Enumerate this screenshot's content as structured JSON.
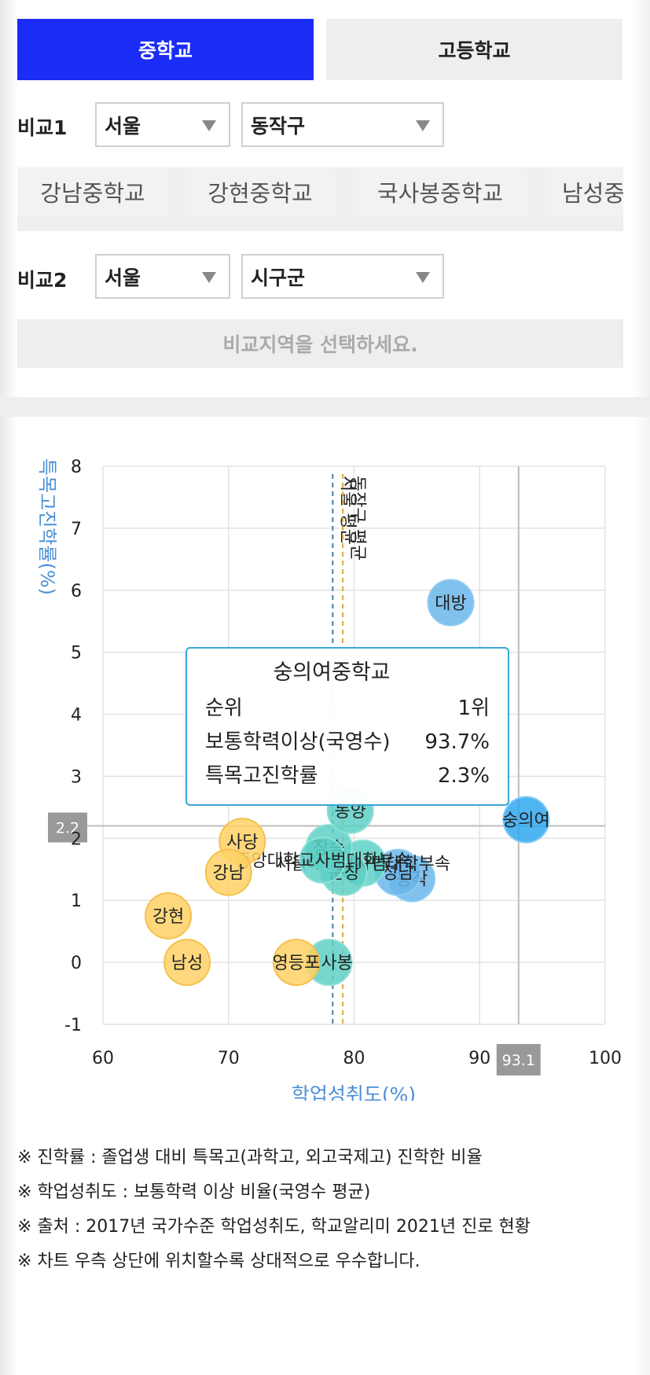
{
  "tabs": [
    {
      "label": "중학교",
      "active": true
    },
    {
      "label": "고등학교",
      "active": false
    }
  ],
  "compare1": {
    "label": "비교1",
    "region": "서울",
    "district": "동작구",
    "schools": [
      "강남중학교",
      "강현중학교",
      "국사봉중학교",
      "남성중"
    ]
  },
  "compare2": {
    "label": "비교2",
    "region": "서울",
    "district": "시구군",
    "placeholder": "비교지역을 선택하세요."
  },
  "colors": {
    "accent": "#1a2cf5",
    "ylabel": "#4a8fd6",
    "xlabel": "#4a8fd6",
    "bubble_blue": "#6ab6ea",
    "bubble_teal": "#5ed0c6",
    "bubble_yellow": "#ffd166",
    "bubble_highlight": "#2fa8ee",
    "avg_line_blue": "#4a7e9c",
    "avg_line_orange": "#e8a33c",
    "tooltip_border": "#3aa6d8",
    "ref_badge": "#999999"
  },
  "chart_data": {
    "type": "scatter",
    "xlabel": "학업성취도(%)",
    "ylabel": "특목고진학률(%)",
    "xlim": [
      60,
      100
    ],
    "ylim": [
      -1,
      8
    ],
    "xticks": [
      "60",
      "70",
      "80",
      "90",
      "100"
    ],
    "yticks": [
      "8",
      "7",
      "6",
      "5",
      "4",
      "3",
      "2",
      "1",
      "0",
      "-1"
    ],
    "grid": true,
    "points": [
      {
        "label": "대방",
        "x": 87.7,
        "y": 5.8,
        "group": "blue"
      },
      {
        "label": "숭의여",
        "x": 93.7,
        "y": 2.3,
        "group": "highlight"
      },
      {
        "label": "동작",
        "x": 84.6,
        "y": 1.35,
        "group": "blue"
      },
      {
        "label": "성남",
        "x": 83.5,
        "y": 1.45,
        "group": "blue"
      },
      {
        "label": "서울대학교사범대학부속",
        "x": 80.7,
        "y": 1.6,
        "group": "teal"
      },
      {
        "label": "문창",
        "x": 79.2,
        "y": 1.45,
        "group": "teal"
      },
      {
        "label": "장승",
        "x": 78.0,
        "y": 1.85,
        "group": "teal"
      },
      {
        "label": "중앙대학교사범대학부속",
        "x": 77.5,
        "y": 1.65,
        "group": "teal"
      },
      {
        "label": "동양",
        "x": 79.7,
        "y": 2.45,
        "group": "teal"
      },
      {
        "label": "국사봉",
        "x": 78.0,
        "y": 0.0,
        "group": "teal"
      },
      {
        "label": "영등포",
        "x": 75.4,
        "y": 0.0,
        "group": "yellow"
      },
      {
        "label": "사당",
        "x": 71.1,
        "y": 1.95,
        "group": "yellow"
      },
      {
        "label": "강남",
        "x": 70.0,
        "y": 1.45,
        "group": "yellow"
      },
      {
        "label": "강현",
        "x": 65.2,
        "y": 0.75,
        "group": "yellow"
      },
      {
        "label": "남성",
        "x": 66.7,
        "y": 0.0,
        "group": "yellow"
      }
    ],
    "avg_lines": [
      {
        "label": "서울 평균",
        "x": 78.3,
        "color": "#4a7e9c"
      },
      {
        "label": "동작구 평균",
        "x": 79.1,
        "color": "#e8a33c"
      }
    ],
    "ref_lines": {
      "x": 93.1,
      "y": 2.2,
      "x_label": "93.1",
      "y_label": "2.2"
    },
    "tooltip": {
      "title": "숭의여중학교",
      "rows": [
        {
          "key": "순위",
          "value": "1위"
        },
        {
          "key": "보통학력이상(국영수)",
          "value": "93.7%"
        },
        {
          "key": "특목고진학률",
          "value": "2.3%"
        }
      ]
    }
  },
  "notes": [
    "※ 진학률 : 졸업생 대비 특목고(과학고, 외고국제고) 진학한 비율",
    "※ 학업성취도 : 보통학력 이상 비율(국영수 평균)",
    "※ 출처 : 2017년 국가수준 학업성취도, 학교알리미 2021년 진로 현황",
    "※ 차트 우측 상단에 위치할수록 상대적으로 우수합니다."
  ]
}
